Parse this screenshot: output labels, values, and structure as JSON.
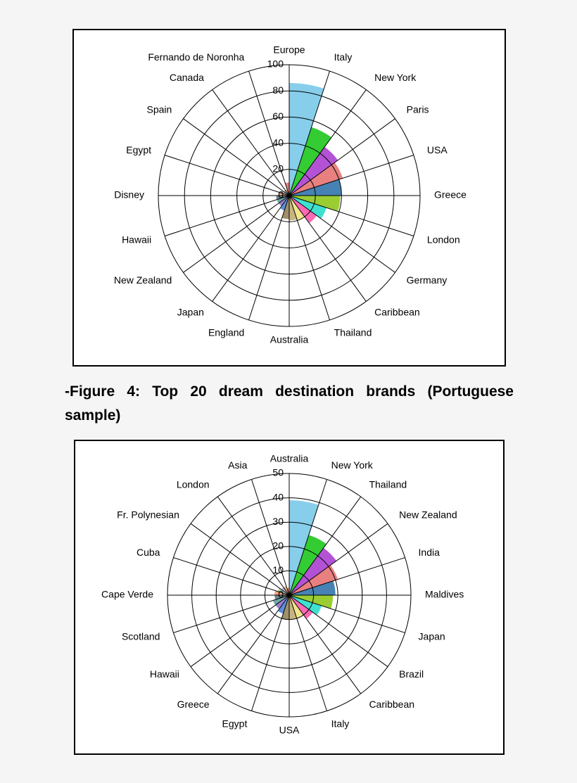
{
  "chart_data": [
    {
      "type": "polar-area",
      "categories": [
        "Europe",
        "Italy",
        "New York",
        "Paris",
        "USA",
        "Greece",
        "London",
        "Germany",
        "Caribbean",
        "Thailand",
        "Australia",
        "England",
        "Japan",
        "New Zealand",
        "Hawaii",
        "Disney",
        "Egypt",
        "Spain",
        "Canada",
        "Fernando de Noronha"
      ],
      "values": [
        86,
        55,
        46,
        43,
        40,
        39,
        30,
        26,
        20,
        19,
        18,
        12,
        10,
        10,
        10,
        8,
        7,
        5,
        5,
        10
      ],
      "colors": [
        "#87ceeb",
        "#33cc33",
        "#b452d6",
        "#e88080",
        "#4682b4",
        "#9acd32",
        "#40e0d0",
        "#ff69b4",
        "#f0e68c",
        "#c8b482",
        "#a0906a",
        "#5b8fd8",
        "#9b7fd0",
        "#6fa8a8",
        "#708890",
        "#f4a080",
        "#a8d8a8",
        "#c0a0e0",
        "#e0c080",
        "#e88080"
      ],
      "ylim": [
        0,
        100
      ],
      "yticks": [
        0,
        20,
        40,
        60,
        80,
        100
      ]
    },
    {
      "type": "polar-area",
      "categories": [
        "Australia",
        "New York",
        "Thailand",
        "New Zealand",
        "India",
        "Maldives",
        "Japan",
        "Brazil",
        "Caribbean",
        "Italy",
        "USA",
        "Egypt",
        "Greece",
        "Hawaii",
        "Scotland",
        "Cape Verde",
        "Cuba",
        "Fr. Polynesian",
        "London",
        "Asia"
      ],
      "values": [
        39,
        26,
        24,
        21,
        19,
        18,
        14,
        12,
        10,
        10,
        10,
        8,
        7,
        7,
        6,
        6,
        5,
        4,
        4,
        3
      ],
      "colors": [
        "#87ceeb",
        "#33cc33",
        "#b452d6",
        "#e88080",
        "#4682b4",
        "#9acd32",
        "#40e0d0",
        "#ff69b4",
        "#f0e68c",
        "#c8b482",
        "#a0906a",
        "#5b8fd8",
        "#9b7fd0",
        "#6fa8a8",
        "#708890",
        "#f4a080",
        "#a8d8a8",
        "#c0a0e0",
        "#e0c080",
        "#e88080"
      ],
      "ylim": [
        0,
        50
      ],
      "yticks": [
        0,
        10,
        20,
        30,
        40,
        50
      ]
    }
  ],
  "caption": "-Figure 4: Top 20 dream destination brands (Portuguese sample)"
}
